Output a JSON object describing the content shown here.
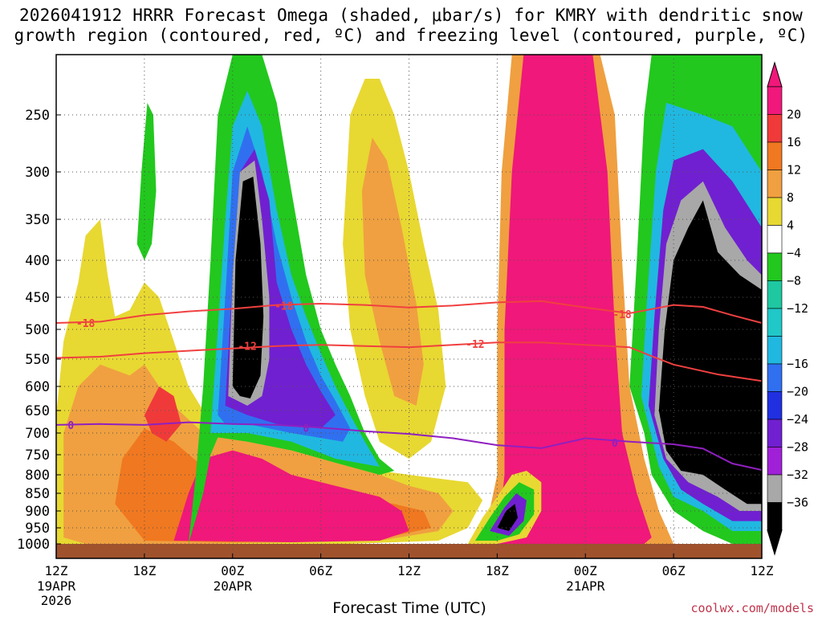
{
  "title_line1": "2026041912 HRRR Forecast Omega (shaded, μbar/s) for KMRY with dendritic snow",
  "title_line2": "growth region (contoured, red, ºC) and freezing level (contoured, purple, ºC)",
  "xlabel": "Forecast Time (UTC)",
  "credit": "coolwx.com/models",
  "colors": {
    "magenta": "#f0187a",
    "red": "#f03a3a",
    "orange_dark": "#f07820",
    "orange": "#f0a040",
    "yellow": "#e8d832",
    "green": "#22c81e",
    "teal": "#1ec8a0",
    "cyan": "#20b8e0",
    "blue": "#3070f0",
    "darkblue": "#2030e0",
    "purple_dark": "#7020d0",
    "purple": "#a020d8",
    "gray": "#a8a8a8",
    "black": "#000000",
    "ground": "#a0522d",
    "dgz_contour": "#f04040",
    "freezing_contour": "#9020c0"
  },
  "chart_data": {
    "type": "time-height omega cross-section",
    "y_axis": {
      "label": "",
      "scale": "log-pressure",
      "range_hpa": [
        1000,
        200
      ],
      "ticks": [
        250,
        300,
        350,
        400,
        450,
        500,
        550,
        600,
        650,
        700,
        750,
        800,
        850,
        900,
        950,
        1000
      ]
    },
    "x_axis": {
      "label": "Forecast Time (UTC)",
      "range_hours": [
        0,
        48
      ],
      "ticks": [
        {
          "h": 0,
          "label": "12Z",
          "sub": [
            "19APR",
            "2026"
          ]
        },
        {
          "h": 6,
          "label": "18Z",
          "sub": []
        },
        {
          "h": 12,
          "label": "00Z",
          "sub": [
            "20APR"
          ]
        },
        {
          "h": 18,
          "label": "06Z",
          "sub": []
        },
        {
          "h": 24,
          "label": "12Z",
          "sub": []
        },
        {
          "h": 30,
          "label": "18Z",
          "sub": []
        },
        {
          "h": 36,
          "label": "00Z",
          "sub": [
            "21APR"
          ]
        },
        {
          "h": 42,
          "label": "06Z",
          "sub": []
        },
        {
          "h": 48,
          "label": "12Z",
          "sub": []
        }
      ]
    },
    "colorbar": {
      "labels": [
        "20",
        "16",
        "12",
        "8",
        "4",
        "−4",
        "−8",
        "−12",
        "−16",
        "−20",
        "−24",
        "−28",
        "−32",
        "−36"
      ],
      "colors": [
        "#f0187a",
        "#f03a3a",
        "#f07820",
        "#f0a040",
        "#e8d832",
        "#ffffff",
        "#22c81e",
        "#1ec8a0",
        "#20c8c8",
        "#20b8e0",
        "#3070f0",
        "#2030e0",
        "#7020d0",
        "#a020d8",
        "#a8a8a8",
        "#000000"
      ]
    },
    "contours": [
      {
        "name": "-18",
        "color": "#f04040",
        "points": [
          [
            0,
            490
          ],
          [
            3,
            488
          ],
          [
            6,
            478
          ],
          [
            9,
            472
          ],
          [
            12,
            468
          ],
          [
            15,
            462
          ],
          [
            18,
            460
          ],
          [
            21,
            462
          ],
          [
            24,
            466
          ],
          [
            27,
            463
          ],
          [
            30,
            458
          ],
          [
            33,
            456
          ],
          [
            36,
            466
          ],
          [
            39,
            475
          ],
          [
            42,
            462
          ],
          [
            44,
            465
          ],
          [
            46,
            478
          ],
          [
            48,
            490
          ]
        ],
        "labels": [
          [
            2,
            490
          ],
          [
            15.5,
            463
          ],
          [
            38.5,
            476
          ]
        ]
      },
      {
        "name": "-12",
        "color": "#f04040",
        "points": [
          [
            0,
            548
          ],
          [
            3,
            546
          ],
          [
            6,
            540
          ],
          [
            9,
            536
          ],
          [
            12,
            532
          ],
          [
            15,
            528
          ],
          [
            18,
            526
          ],
          [
            21,
            528
          ],
          [
            24,
            530
          ],
          [
            27,
            526
          ],
          [
            30,
            522
          ],
          [
            33,
            522
          ],
          [
            36,
            526
          ],
          [
            39,
            530
          ],
          [
            40.5,
            545
          ],
          [
            42,
            560
          ],
          [
            45,
            578
          ],
          [
            48,
            590
          ]
        ],
        "labels": [
          [
            13,
            528
          ],
          [
            28.5,
            524
          ]
        ]
      },
      {
        "name": "0",
        "color": "#9020c0",
        "points": [
          [
            0,
            682
          ],
          [
            3,
            680
          ],
          [
            6,
            682
          ],
          [
            9,
            676
          ],
          [
            12,
            680
          ],
          [
            15,
            682
          ],
          [
            18,
            688
          ],
          [
            21,
            696
          ],
          [
            24,
            702
          ],
          [
            27,
            712
          ],
          [
            30,
            728
          ],
          [
            33,
            735
          ],
          [
            36,
            712
          ],
          [
            39,
            720
          ],
          [
            42,
            726
          ],
          [
            44,
            736
          ],
          [
            46,
            772
          ],
          [
            48,
            788
          ]
        ],
        "labels": [
          [
            1,
            682
          ],
          [
            17,
            688
          ],
          [
            38,
            722
          ]
        ]
      }
    ],
    "ground_pressure_hpa": 1000
  }
}
